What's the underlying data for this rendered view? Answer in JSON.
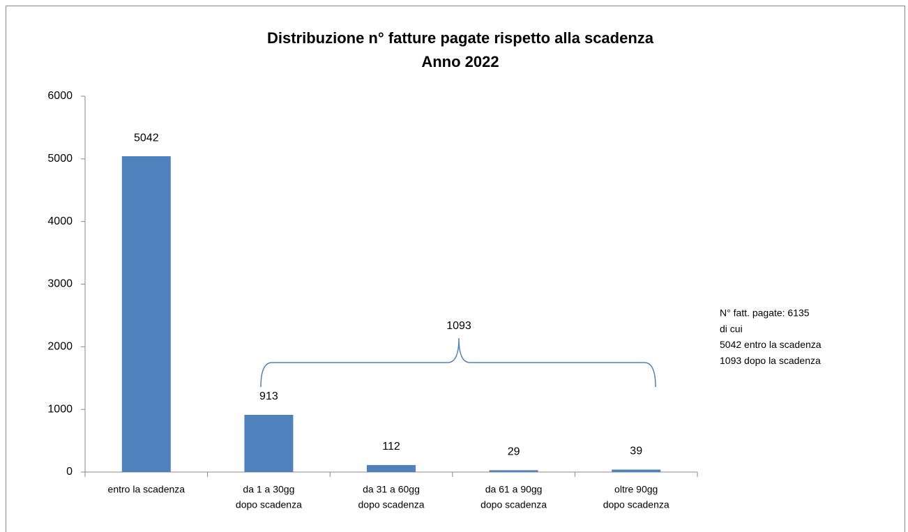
{
  "chart_data": {
    "type": "bar",
    "title": "Distribuzione n° fatture pagate rispetto alla scadenza",
    "subtitle": "Anno 2022",
    "categories": [
      [
        "entro la scadenza"
      ],
      [
        "da 1 a 30gg",
        "dopo scadenza"
      ],
      [
        "da 31 a 60gg",
        "dopo scadenza"
      ],
      [
        "da 61 a 90gg",
        "dopo scadenza"
      ],
      [
        "oltre 90gg",
        "dopo scadenza"
      ]
    ],
    "values": [
      5042,
      913,
      112,
      29,
      39
    ],
    "color": "#4f81bd",
    "ylim": [
      0,
      6000
    ],
    "yticks": [
      0,
      1000,
      2000,
      3000,
      4000,
      5000,
      6000
    ],
    "grid": false,
    "brace_label": "1093",
    "note": [
      "N° fatt. pagate: 6135",
      "di cui",
      "5042 entro la scadenza",
      "1093 dopo la scadenza"
    ]
  }
}
